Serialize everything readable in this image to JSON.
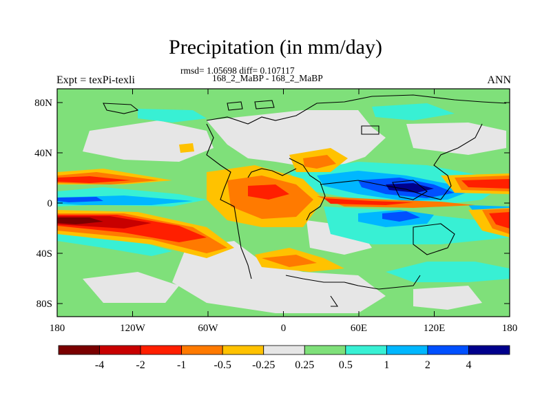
{
  "title": "Precipitation (in mm/day)",
  "stats_line": "rmsd= 1.05698  diff= 0.107117",
  "comparison_line": "168_2_MaBP - 168_2_MaBP",
  "experiment_label": "Expt = texPi-texli",
  "season_label": "ANN",
  "axes": {
    "y_ticks": [
      "80N",
      "40N",
      "0",
      "40S",
      "80S"
    ],
    "x_ticks": [
      "180",
      "120W",
      "60W",
      "0",
      "60E",
      "120E",
      "180"
    ]
  },
  "colorbar": {
    "labels": [
      "-4",
      "-2",
      "-1",
      "-0.5",
      "-0.25",
      "0.25",
      "0.5",
      "1",
      "2",
      "4"
    ],
    "colors": [
      "#7a0000",
      "#c80000",
      "#ff1f00",
      "#ff7a00",
      "#ffc200",
      "#e6e6e6",
      "#7fe07a",
      "#38f0d4",
      "#00b7ff",
      "#0050ff",
      "#00008c"
    ]
  }
}
